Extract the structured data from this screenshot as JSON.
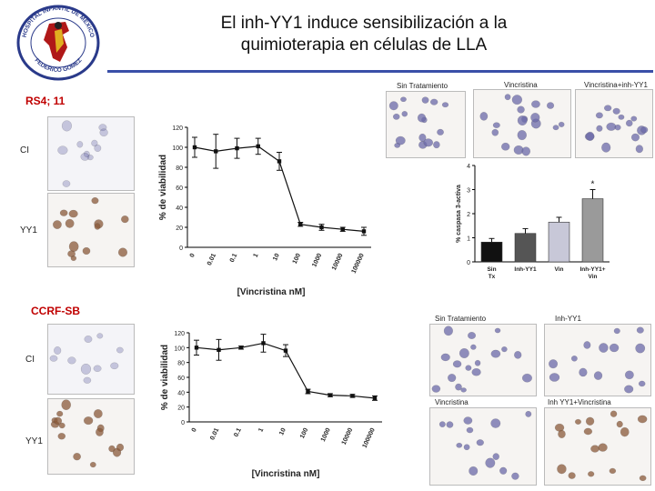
{
  "title": {
    "line1": "El inh-YY1 induce sensibilización a la",
    "line2": "quimioterapia en células de LLA"
  },
  "colors": {
    "rule": "#3a4fa8",
    "section": "#c00000",
    "stain_blue": "#6b6aa8",
    "stain_brown": "#8a5a3a"
  },
  "logo": {
    "top_text": "HOSPITAL INFANTIL DE MEXICO",
    "bottom_text": "FEDERICO GOMEZ",
    "icon": "hospital-seal-icon"
  },
  "rs4": {
    "label": "RS4; 11",
    "row_ci": "CI",
    "row_yy1": "YY1",
    "panels": [
      "Sin Tratamiento",
      "Vincristina",
      "Vincristina+inh-YY1"
    ]
  },
  "ccrf": {
    "label": "CCRF-SB",
    "row_ci": "CI",
    "row_yy1": "YY1",
    "panels": [
      "Sin Tratamiento",
      "Inh-YY1",
      "Vincristina",
      "Inh YY1+Vincristina"
    ]
  },
  "chart_data": [
    {
      "type": "line",
      "name": "rs4-viability",
      "categories": [
        "0",
        "0.01",
        "0.1",
        "1",
        "10",
        "100",
        "1000",
        "10000",
        "100000"
      ],
      "values": [
        100,
        96,
        99,
        101,
        86,
        23,
        20,
        18,
        16
      ],
      "errors": [
        10,
        17,
        10,
        8,
        9,
        2,
        3,
        2,
        4
      ],
      "xlabel": "[Vincristina nM]",
      "ylabel": "% de viabilidad",
      "ylim": [
        0,
        120
      ],
      "yticks": [
        "0",
        "20",
        "40",
        "60",
        "80",
        "100",
        "120"
      ]
    },
    {
      "type": "bar",
      "name": "caspase-3",
      "categories": [
        "Sin Tx",
        "Inh-YY1",
        "Vin",
        "Inh-YY1+ Vin"
      ],
      "values": [
        0.82,
        1.18,
        1.65,
        2.62
      ],
      "errors": [
        0.15,
        0.2,
        0.2,
        0.38
      ],
      "bar_colors": [
        "#111111",
        "#555555",
        "#c8c8d8",
        "#9a9a9a"
      ],
      "ylabel": "% caspasa 3-activa",
      "ylim": [
        0,
        4
      ],
      "yticks": [
        "0",
        "1",
        "2",
        "3",
        "4"
      ],
      "annotation": "*"
    },
    {
      "type": "line",
      "name": "ccrf-viability",
      "categories": [
        "0",
        "0.01",
        "0.1",
        "1",
        "10",
        "100",
        "1000",
        "10000",
        "100000"
      ],
      "values": [
        100,
        97,
        100,
        106,
        96,
        41,
        36,
        35,
        32
      ],
      "errors": [
        10,
        14,
        2,
        12,
        8,
        3,
        2,
        2,
        3
      ],
      "xlabel": "[Vincristina nM]",
      "ylabel": "% de viabilidad",
      "ylim": [
        0,
        120
      ],
      "yticks": [
        "0",
        "20",
        "40",
        "60",
        "80",
        "100",
        "120"
      ]
    }
  ]
}
